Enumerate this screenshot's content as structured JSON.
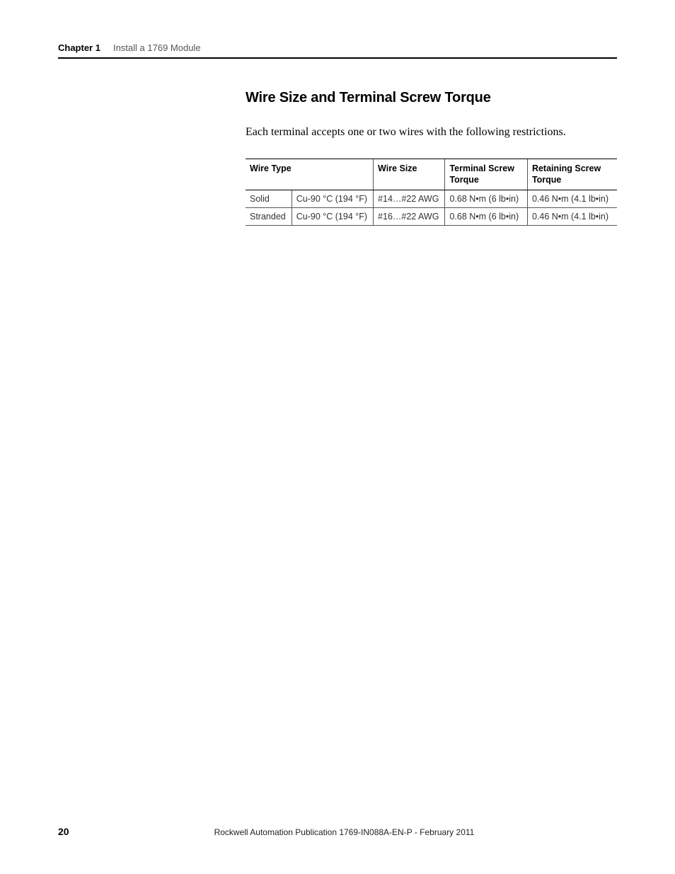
{
  "header": {
    "chapter_label": "Chapter 1",
    "chapter_title": "Install a 1769 Module"
  },
  "section": {
    "heading": "Wire Size and Terminal Screw Torque",
    "intro": "Each terminal accepts one or two wires with the following restrictions."
  },
  "table": {
    "columns": {
      "c0": "Wire Type",
      "c2": "Wire Size",
      "c3": "Terminal Screw Torque",
      "c4": "Retaining Screw Torque"
    },
    "rows": [
      {
        "type": "Solid",
        "spec": "Cu-90 °C (194 °F)",
        "size": "#14…#22 AWG",
        "term_torque": "0.68 N•m (6 lb•in)",
        "ret_torque": "0.46 N•m (4.1 lb•in)"
      },
      {
        "type": "Stranded",
        "spec": "Cu-90 °C (194 °F)",
        "size": "#16…#22 AWG",
        "term_torque": "0.68 N•m (6 lb•in)",
        "ret_torque": "0.46 N•m (4.1 lb•in)"
      }
    ],
    "col_widths_pct": [
      12,
      20,
      16,
      25,
      27
    ]
  },
  "footer": {
    "page_number": "20",
    "publication": "Rockwell Automation Publication 1769-IN088A-EN-P - February 2011"
  },
  "style": {
    "page_bg": "#ffffff",
    "text_color": "#000000",
    "muted_color": "#555555",
    "rule_color": "#000000",
    "cell_border_color": "#555555",
    "heading_fontsize_pt": 20,
    "body_fontsize_pt": 16,
    "table_fontsize_pt": 12.5,
    "footer_fontsize_pt": 12
  }
}
